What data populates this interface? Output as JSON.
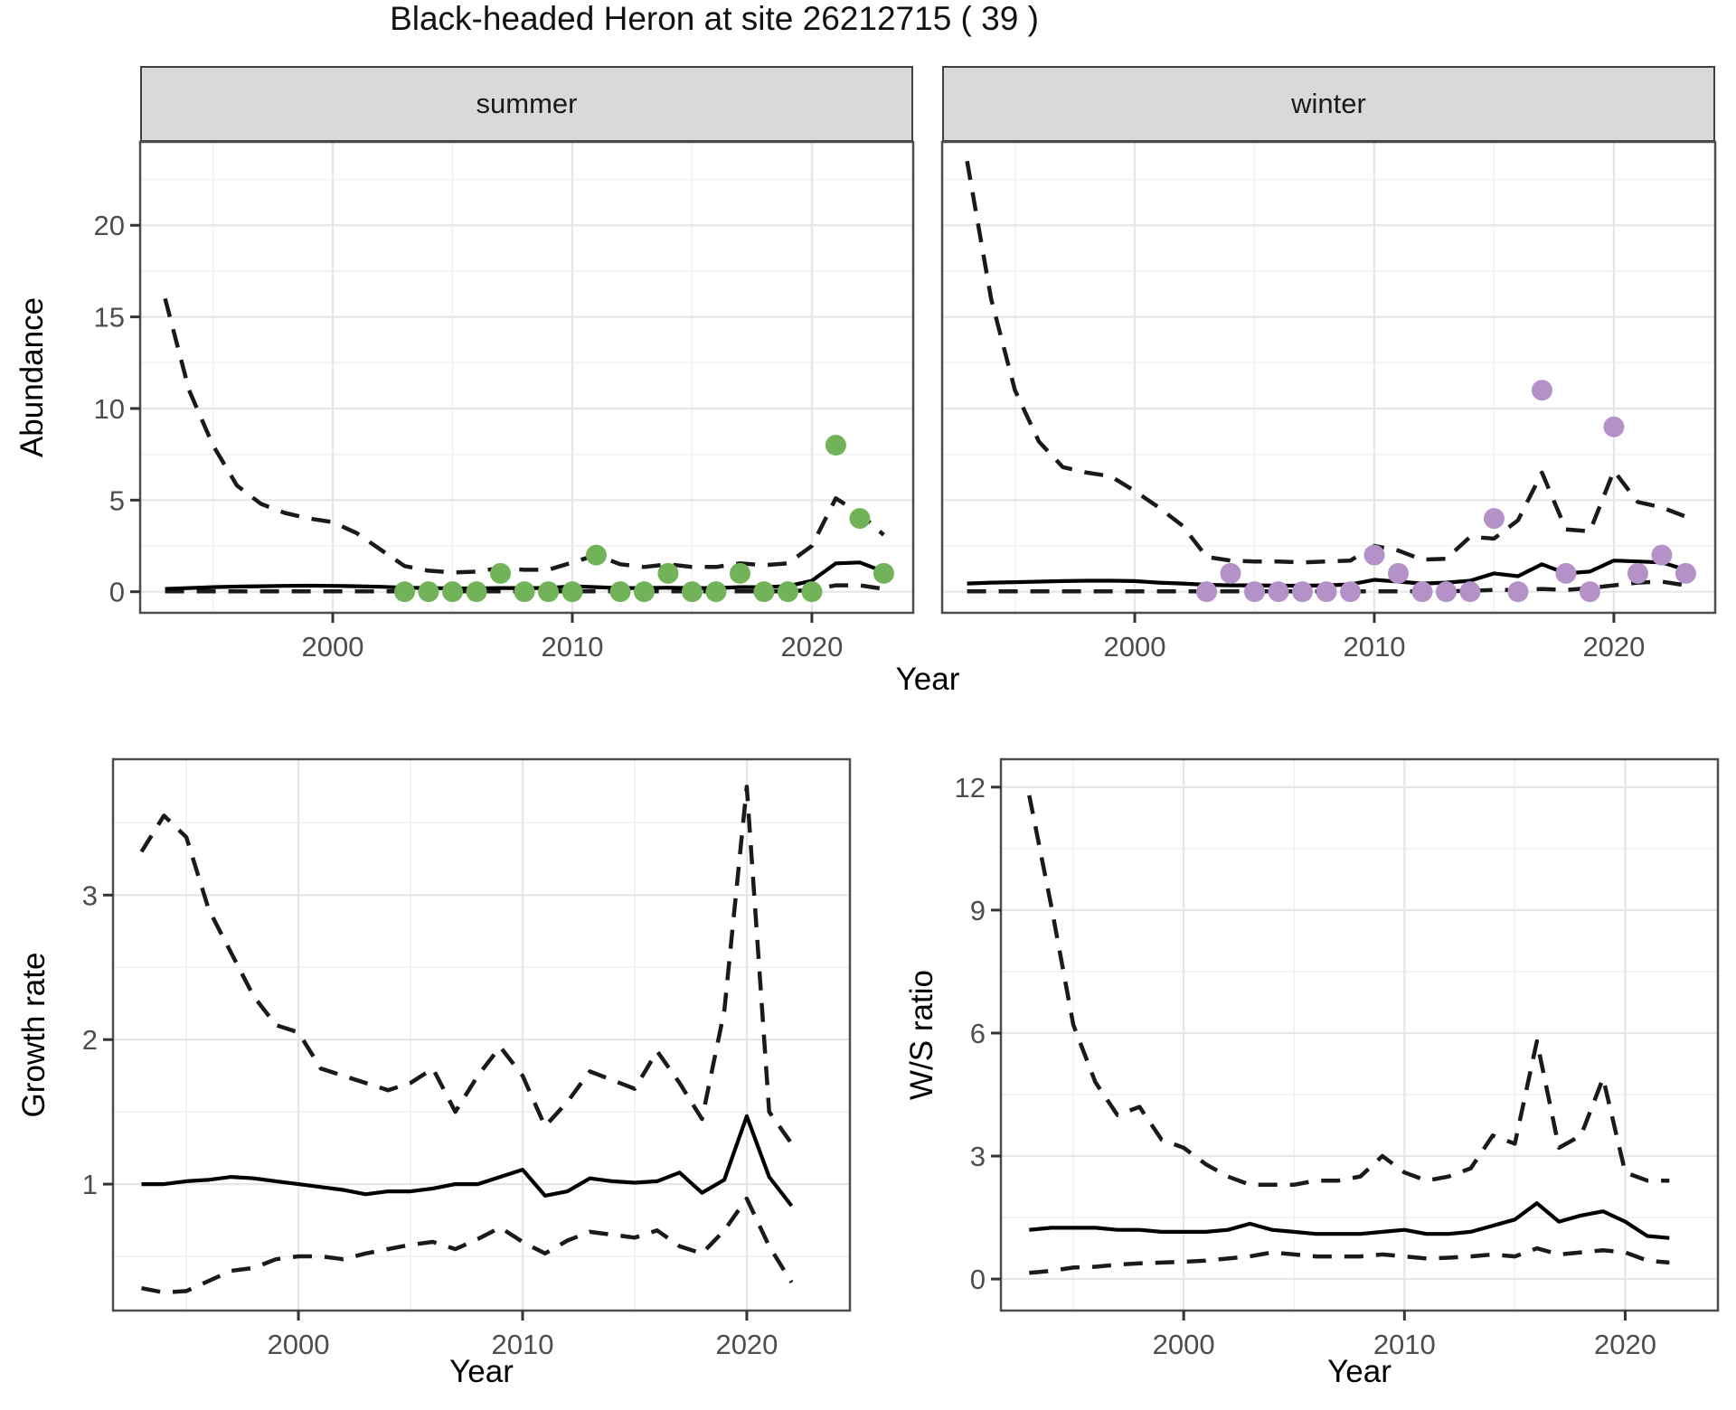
{
  "title": "Black-headed Heron at site 26212715 ( 39 )",
  "axis_labels": {
    "top_y": "Abundance",
    "top_x": "Year",
    "bottom_left_y": "Growth rate",
    "bottom_left_x": "Year",
    "bottom_right_y": "W/S ratio",
    "bottom_right_x": "Year"
  },
  "colors": {
    "summer_points": "#72b35a",
    "winter_points": "#b492c8",
    "fit_line": "#000000",
    "ci_line": "#1a1a1a",
    "grid_major": "#e6e6e6",
    "grid_minor": "#f1f1f1",
    "panel_border": "#4d4d4d",
    "strip_bg": "#d9d9d9",
    "tick_label": "#4d4d4d"
  },
  "chart_data": [
    {
      "id": "abundance-summer",
      "type": "line",
      "facet_label": "summer",
      "ylabel": "Abundance",
      "xlabel": "Year",
      "xlim": [
        1991.96,
        2024.23
      ],
      "ylim": [
        -1.15,
        24.55
      ],
      "x_ticks": [
        2000,
        2010,
        2020
      ],
      "y_ticks": [
        0,
        5,
        10,
        15,
        20
      ],
      "grid": true,
      "legend": "none",
      "series": [
        {
          "name": "observed-counts",
          "style": "points",
          "color": "#72b35a",
          "x": [
            2003,
            2004,
            2005,
            2006,
            2007,
            2008,
            2009,
            2010,
            2011,
            2012,
            2013,
            2014,
            2015,
            2016,
            2017,
            2018,
            2019,
            2020,
            2021,
            2022,
            2023
          ],
          "y": [
            0,
            0,
            0,
            0,
            1,
            0,
            0,
            0,
            2,
            0,
            0,
            1,
            0,
            0,
            1,
            0,
            0,
            0,
            8,
            4,
            1
          ]
        },
        {
          "name": "model-fit",
          "style": "solid",
          "color": "#000000",
          "x": [
            1993,
            1994,
            1995,
            1996,
            1997,
            1998,
            1999,
            2000,
            2001,
            2002,
            2003,
            2004,
            2005,
            2006,
            2007,
            2008,
            2009,
            2010,
            2011,
            2012,
            2013,
            2014,
            2015,
            2016,
            2017,
            2018,
            2019,
            2020,
            2021,
            2022,
            2023
          ],
          "y": [
            0.15,
            0.2,
            0.25,
            0.28,
            0.3,
            0.32,
            0.33,
            0.32,
            0.3,
            0.27,
            0.22,
            0.2,
            0.18,
            0.18,
            0.2,
            0.2,
            0.2,
            0.3,
            0.25,
            0.2,
            0.2,
            0.22,
            0.2,
            0.2,
            0.25,
            0.25,
            0.3,
            0.6,
            1.55,
            1.6,
            1.1
          ]
        },
        {
          "name": "upper-ci",
          "style": "dashed",
          "color": "#1a1a1a",
          "x": [
            1993,
            1994,
            1995,
            1996,
            1997,
            1998,
            1999,
            2000,
            2001,
            2002,
            2003,
            2004,
            2005,
            2006,
            2007,
            2008,
            2009,
            2010,
            2011,
            2012,
            2013,
            2014,
            2015,
            2016,
            2017,
            2018,
            2019,
            2020,
            2021,
            2022,
            2023
          ],
          "y": [
            16,
            11,
            8,
            5.8,
            4.8,
            4.3,
            4.0,
            3.8,
            3.2,
            2.3,
            1.4,
            1.15,
            1.05,
            1.1,
            1.3,
            1.2,
            1.2,
            1.6,
            2.0,
            1.5,
            1.35,
            1.5,
            1.35,
            1.35,
            1.55,
            1.45,
            1.55,
            2.5,
            5.1,
            4.25,
            3.1
          ]
        },
        {
          "name": "lower-ci",
          "style": "dashed",
          "color": "#1a1a1a",
          "x": [
            1993,
            1994,
            1995,
            1996,
            1997,
            1998,
            1999,
            2000,
            2001,
            2002,
            2003,
            2004,
            2005,
            2006,
            2007,
            2008,
            2009,
            2010,
            2011,
            2012,
            2013,
            2014,
            2015,
            2016,
            2017,
            2018,
            2019,
            2020,
            2021,
            2022,
            2023
          ],
          "y": [
            0.02,
            0.02,
            0.02,
            0.02,
            0.02,
            0.02,
            0.02,
            0.02,
            0.02,
            0.02,
            0.02,
            0.02,
            0.02,
            0.02,
            0.02,
            0.02,
            0.02,
            0.02,
            0.02,
            0.02,
            0.02,
            0.02,
            0.02,
            0.02,
            0.02,
            0.02,
            0.02,
            0.1,
            0.35,
            0.35,
            0.15
          ]
        }
      ]
    },
    {
      "id": "abundance-winter",
      "type": "line",
      "facet_label": "winter",
      "ylabel": "Abundance",
      "xlabel": "Year",
      "xlim": [
        1991.96,
        2024.23
      ],
      "ylim": [
        -1.15,
        24.55
      ],
      "x_ticks": [
        2000,
        2010,
        2020
      ],
      "y_ticks": [
        0,
        5,
        10,
        15,
        20
      ],
      "grid": true,
      "legend": "none",
      "series": [
        {
          "name": "observed-counts",
          "style": "points",
          "color": "#b492c8",
          "x": [
            2003,
            2004,
            2005,
            2006,
            2007,
            2008,
            2009,
            2010,
            2011,
            2012,
            2013,
            2014,
            2015,
            2016,
            2017,
            2018,
            2019,
            2020,
            2021,
            2022,
            2023
          ],
          "y": [
            0,
            1,
            0,
            0,
            0,
            0,
            0,
            2,
            1,
            0,
            0,
            0,
            4,
            0,
            11,
            1,
            0,
            9,
            1,
            2,
            1
          ]
        },
        {
          "name": "model-fit",
          "style": "solid",
          "color": "#000000",
          "x": [
            1993,
            1994,
            1995,
            1996,
            1997,
            1998,
            1999,
            2000,
            2001,
            2002,
            2003,
            2004,
            2005,
            2006,
            2007,
            2008,
            2009,
            2010,
            2011,
            2012,
            2013,
            2014,
            2015,
            2016,
            2017,
            2018,
            2019,
            2020,
            2021,
            2022,
            2023
          ],
          "y": [
            0.45,
            0.5,
            0.52,
            0.55,
            0.58,
            0.6,
            0.6,
            0.58,
            0.5,
            0.45,
            0.38,
            0.35,
            0.35,
            0.33,
            0.33,
            0.35,
            0.4,
            0.65,
            0.55,
            0.45,
            0.5,
            0.6,
            1.0,
            0.85,
            1.5,
            1.0,
            1.1,
            1.7,
            1.65,
            1.6,
            1.2
          ]
        },
        {
          "name": "upper-ci",
          "style": "dashed",
          "color": "#1a1a1a",
          "x": [
            1993,
            1994,
            1995,
            1996,
            1997,
            1998,
            1999,
            2000,
            2001,
            2002,
            2003,
            2004,
            2005,
            2006,
            2007,
            2008,
            2009,
            2010,
            2011,
            2012,
            2013,
            2014,
            2015,
            2016,
            2017,
            2018,
            2019,
            2020,
            2021,
            2022,
            2023
          ],
          "y": [
            23.5,
            16,
            11,
            8.2,
            6.8,
            6.5,
            6.3,
            5.5,
            4.6,
            3.6,
            1.9,
            1.7,
            1.65,
            1.65,
            1.6,
            1.65,
            1.7,
            2.5,
            2.25,
            1.75,
            1.8,
            3.0,
            2.9,
            3.9,
            6.5,
            3.4,
            3.3,
            6.6,
            4.9,
            4.6,
            4.1
          ]
        },
        {
          "name": "lower-ci",
          "style": "dashed",
          "color": "#1a1a1a",
          "x": [
            1993,
            1994,
            1995,
            1996,
            1997,
            1998,
            1999,
            2000,
            2001,
            2002,
            2003,
            2004,
            2005,
            2006,
            2007,
            2008,
            2009,
            2010,
            2011,
            2012,
            2013,
            2014,
            2015,
            2016,
            2017,
            2018,
            2019,
            2020,
            2021,
            2022,
            2023
          ],
          "y": [
            0.02,
            0.02,
            0.02,
            0.02,
            0.02,
            0.02,
            0.02,
            0.02,
            0.02,
            0.02,
            0.02,
            0.02,
            0.02,
            0.02,
            0.02,
            0.02,
            0.02,
            0.02,
            0.02,
            0.02,
            0.02,
            0.05,
            0.1,
            0.1,
            0.15,
            0.1,
            0.2,
            0.35,
            0.5,
            0.55,
            0.35
          ]
        }
      ]
    },
    {
      "id": "growth-rate",
      "type": "line",
      "facet_label": "",
      "ylabel": "Growth rate",
      "xlabel": "Year",
      "xlim": [
        1991.73,
        2024.6
      ],
      "ylim": [
        0.125,
        3.94
      ],
      "x_ticks": [
        2000,
        2010,
        2020
      ],
      "y_ticks": [
        1,
        2,
        3
      ],
      "grid": true,
      "legend": "none",
      "series": [
        {
          "name": "model-fit",
          "style": "solid",
          "color": "#000000",
          "x": [
            1993,
            1994,
            1995,
            1996,
            1997,
            1998,
            1999,
            2000,
            2001,
            2002,
            2003,
            2004,
            2005,
            2006,
            2007,
            2008,
            2009,
            2010,
            2011,
            2012,
            2013,
            2014,
            2015,
            2016,
            2017,
            2018,
            2019,
            2020,
            2021,
            2022
          ],
          "y": [
            1.0,
            1.0,
            1.02,
            1.03,
            1.05,
            1.04,
            1.02,
            1.0,
            0.98,
            0.96,
            0.93,
            0.95,
            0.95,
            0.97,
            1.0,
            1.0,
            1.05,
            1.1,
            0.92,
            0.95,
            1.04,
            1.02,
            1.01,
            1.02,
            1.08,
            0.94,
            1.03,
            1.47,
            1.05,
            0.85
          ]
        },
        {
          "name": "upper-ci",
          "style": "dashed",
          "color": "#1a1a1a",
          "x": [
            1993,
            1994,
            1995,
            1996,
            1997,
            1998,
            1999,
            2000,
            2001,
            2002,
            2003,
            2004,
            2005,
            2006,
            2007,
            2008,
            2009,
            2010,
            2011,
            2012,
            2013,
            2014,
            2015,
            2016,
            2017,
            2018,
            2019,
            2020,
            2021,
            2022
          ],
          "y": [
            3.3,
            3.55,
            3.4,
            2.9,
            2.6,
            2.3,
            2.1,
            2.05,
            1.8,
            1.75,
            1.7,
            1.65,
            1.7,
            1.8,
            1.5,
            1.75,
            1.95,
            1.75,
            1.4,
            1.57,
            1.78,
            1.72,
            1.66,
            1.92,
            1.7,
            1.45,
            2.2,
            3.75,
            1.5,
            1.28
          ]
        },
        {
          "name": "lower-ci",
          "style": "dashed",
          "color": "#1a1a1a",
          "x": [
            1993,
            1994,
            1995,
            1996,
            1997,
            1998,
            1999,
            2000,
            2001,
            2002,
            2003,
            2004,
            2005,
            2006,
            2007,
            2008,
            2009,
            2010,
            2011,
            2012,
            2013,
            2014,
            2015,
            2016,
            2017,
            2018,
            2019,
            2020,
            2021,
            2022
          ],
          "y": [
            0.28,
            0.25,
            0.26,
            0.33,
            0.4,
            0.42,
            0.48,
            0.5,
            0.5,
            0.48,
            0.52,
            0.55,
            0.58,
            0.6,
            0.55,
            0.62,
            0.7,
            0.6,
            0.52,
            0.61,
            0.67,
            0.65,
            0.63,
            0.68,
            0.57,
            0.52,
            0.68,
            0.9,
            0.57,
            0.32
          ]
        }
      ]
    },
    {
      "id": "ws-ratio",
      "type": "line",
      "facet_label": "",
      "ylabel": "W/S ratio",
      "xlabel": "Year",
      "xlim": [
        1991.72,
        2024.2
      ],
      "ylim": [
        -0.77,
        12.68
      ],
      "x_ticks": [
        2000,
        2010,
        2020
      ],
      "y_ticks": [
        0,
        3,
        6,
        9,
        12
      ],
      "grid": true,
      "legend": "none",
      "series": [
        {
          "name": "model-fit",
          "style": "solid",
          "color": "#000000",
          "x": [
            1993,
            1994,
            1995,
            1996,
            1997,
            1998,
            1999,
            2000,
            2001,
            2002,
            2003,
            2004,
            2005,
            2006,
            2007,
            2008,
            2009,
            2010,
            2011,
            2012,
            2013,
            2014,
            2015,
            2016,
            2017,
            2018,
            2019,
            2020,
            2021,
            2022
          ],
          "y": [
            1.2,
            1.25,
            1.25,
            1.25,
            1.2,
            1.2,
            1.15,
            1.15,
            1.15,
            1.2,
            1.35,
            1.2,
            1.15,
            1.1,
            1.1,
            1.1,
            1.15,
            1.2,
            1.1,
            1.1,
            1.15,
            1.3,
            1.45,
            1.85,
            1.4,
            1.55,
            1.65,
            1.4,
            1.05,
            1.0
          ]
        },
        {
          "name": "upper-ci",
          "style": "dashed",
          "color": "#1a1a1a",
          "x": [
            1993,
            1994,
            1995,
            1996,
            1997,
            1998,
            1999,
            2000,
            2001,
            2002,
            2003,
            2004,
            2005,
            2006,
            2007,
            2008,
            2009,
            2010,
            2011,
            2012,
            2013,
            2014,
            2015,
            2016,
            2017,
            2018,
            2019,
            2020,
            2021,
            2022
          ],
          "y": [
            11.8,
            9.1,
            6.2,
            4.8,
            4.0,
            4.2,
            3.4,
            3.2,
            2.8,
            2.5,
            2.3,
            2.3,
            2.3,
            2.4,
            2.4,
            2.5,
            3.0,
            2.6,
            2.4,
            2.5,
            2.7,
            3.5,
            3.3,
            5.8,
            3.2,
            3.5,
            4.9,
            2.6,
            2.4,
            2.4
          ]
        },
        {
          "name": "lower-ci",
          "style": "dashed",
          "color": "#1a1a1a",
          "x": [
            1993,
            1994,
            1995,
            1996,
            1997,
            1998,
            1999,
            2000,
            2001,
            2002,
            2003,
            2004,
            2005,
            2006,
            2007,
            2008,
            2009,
            2010,
            2011,
            2012,
            2013,
            2014,
            2015,
            2016,
            2017,
            2018,
            2019,
            2020,
            2021,
            2022
          ],
          "y": [
            0.15,
            0.2,
            0.28,
            0.3,
            0.35,
            0.38,
            0.4,
            0.42,
            0.45,
            0.5,
            0.55,
            0.65,
            0.6,
            0.55,
            0.55,
            0.55,
            0.6,
            0.55,
            0.5,
            0.52,
            0.55,
            0.6,
            0.55,
            0.75,
            0.6,
            0.65,
            0.7,
            0.65,
            0.45,
            0.4
          ]
        }
      ]
    }
  ]
}
